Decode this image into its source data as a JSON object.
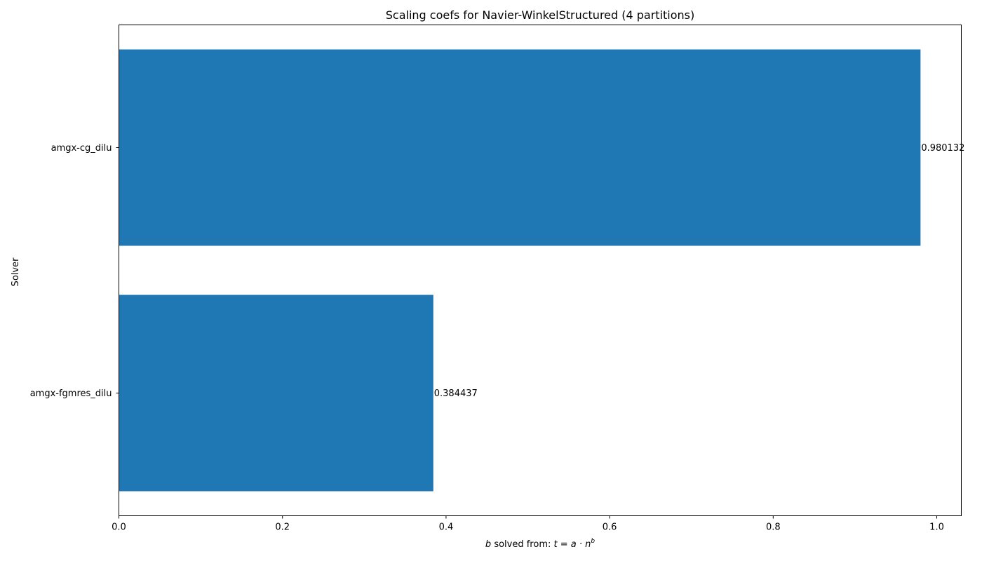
{
  "chart_data": {
    "type": "bar",
    "orientation": "horizontal",
    "title": "Scaling coefs for Navier-WinkelStructured (4 partitions)",
    "xlabel": {
      "prefix_var": "b",
      "middle": " solved from: ",
      "formula": "t = a · n",
      "exponent": "b",
      "full": "b solved from: t = a · n^b"
    },
    "ylabel": "Solver",
    "categories": [
      "amgx-cg_dilu",
      "amgx-fgmres_dilu"
    ],
    "values": [
      0.980132,
      0.384437
    ],
    "value_labels": [
      "0.980132",
      "0.384437"
    ],
    "xlim": [
      0,
      1.03
    ],
    "xticks": [
      0.0,
      0.2,
      0.4,
      0.6,
      0.8,
      1.0
    ],
    "xtick_labels": [
      "0.0",
      "0.2",
      "0.4",
      "0.6",
      "0.8",
      "1.0"
    ],
    "bar_color": "#1f77b4",
    "grid": false,
    "legend": "none"
  }
}
